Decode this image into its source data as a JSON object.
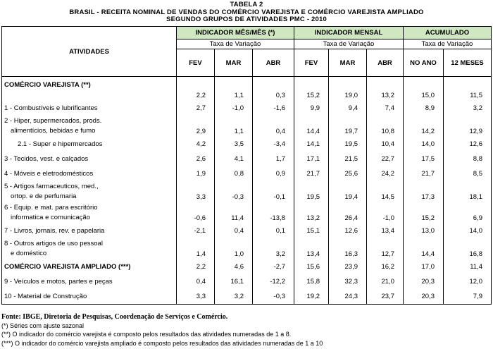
{
  "title": [
    "TABELA 2",
    "BRASIL - RECEITA NOMINAL DE VENDAS DO COMÉRCIO VAREJISTA E COMÉRCIO VAREJISTA AMPLIADO",
    "SEGUNDO GRUPOS DE ATIVIDADES PMC - 2010"
  ],
  "header": {
    "activities": "ATIVIDADES",
    "groups": [
      "INDICADOR MÊS/MÊS (*)",
      "INDICADOR MENSAL",
      "ACUMULADO"
    ],
    "subheader": "Taxa de Variação",
    "columns": [
      "FEV",
      "MAR",
      "ABR",
      "FEV",
      "MAR",
      "ABR",
      "NO ANO",
      "12 MESES"
    ]
  },
  "rows": [
    {
      "label": [
        "COMÉRCIO VAREJISTA (**)"
      ],
      "values": [
        "2,2",
        "1,1",
        "0,3",
        "15,2",
        "19,0",
        "13,2",
        "15,0",
        "11,5"
      ]
    },
    {
      "label": [
        "1 - Combustíveis e lubrificantes"
      ],
      "values": [
        "2,7",
        "-1,0",
        "-1,6",
        "9,9",
        "9,4",
        "7,4",
        "8,9",
        "3,2"
      ]
    },
    {
      "label": [
        "2 - Hiper, supermercados, prods.",
        "alimentícios, bebidas e fumo"
      ],
      "values": [
        "2,9",
        "1,1",
        "0,4",
        "14,4",
        "19,7",
        "10,8",
        "14,2",
        "12,9"
      ]
    },
    {
      "label": [
        "2.1 - Super e hipermercados"
      ],
      "values": [
        "4,2",
        "3,5",
        "-3,4",
        "14,1",
        "19,5",
        "10,4",
        "14,0",
        "12,6"
      ]
    },
    {
      "label": [
        "3 - Tecidos, vest. e calçados"
      ],
      "values": [
        "2,6",
        "4,1",
        "1,7",
        "17,1",
        "21,5",
        "22,7",
        "17,5",
        "8,8"
      ]
    },
    {
      "label": [
        "4 - Móveis e eletrodomésticos"
      ],
      "values": [
        "1,9",
        "0,8",
        "0,9",
        "21,7",
        "25,6",
        "24,2",
        "21,7",
        "8,5"
      ]
    },
    {
      "label": [
        "5 - Artigos farmaceuticos, med.,",
        "ortop. e de perfumaria"
      ],
      "values": [
        "3,3",
        "-0,3",
        "-0,1",
        "19,5",
        "19,4",
        "14,5",
        "17,3",
        "18,1"
      ]
    },
    {
      "label": [
        "6 - Equip. e mat. para escritório",
        "informatica e comunicação"
      ],
      "values": [
        "-0,6",
        "11,4",
        "-13,8",
        "13,2",
        "26,4",
        "-1,0",
        "15,2",
        "6,9"
      ]
    },
    {
      "label": [
        "7 - Livros, jornais, rev. e papelaria"
      ],
      "values": [
        "-2,1",
        "0,4",
        "0,1",
        "15,1",
        "12,6",
        "13,4",
        "13,0",
        "14,0"
      ]
    },
    {
      "label": [
        "8 - Outros artigos de uso pessoal",
        "e doméstico"
      ],
      "values": [
        "1,4",
        "1,0",
        "3,2",
        "13,4",
        "16,3",
        "12,7",
        "14,4",
        "16,8"
      ]
    },
    {
      "label": [
        "COMÉRCIO VAREJISTA AMPLIADO (***)"
      ],
      "values": [
        "2,2",
        "4,6",
        "-2,7",
        "15,6",
        "23,9",
        "16,2",
        "17,0",
        "11,4"
      ]
    },
    {
      "label": [
        "9 - Veículos e motos, partes e peças"
      ],
      "values": [
        "0,4",
        "16,1",
        "-12,2",
        "15,8",
        "32,3",
        "21,0",
        "20,3",
        "12,0"
      ]
    },
    {
      "label": [
        "10 - Material de Construção"
      ],
      "values": [
        "3,3",
        "3,2",
        "-0,3",
        "19,2",
        "24,3",
        "23,7",
        "20,3",
        "7,9"
      ]
    }
  ],
  "footer": {
    "source": "Fonte: IBGE, Diretoria de Pesquisas, Coordenação de Serviços e Comércio.",
    "notes": [
      "(*) Séries com ajuste sazonal",
      "(**) O indicador do comércio varejista é composto pelos resultados das atividades numeradas de 1 a 8.",
      "(***) O indicador do comércio varejista ampliado é composto pelos resultados das atividades numeradas de 1 a 10"
    ]
  }
}
